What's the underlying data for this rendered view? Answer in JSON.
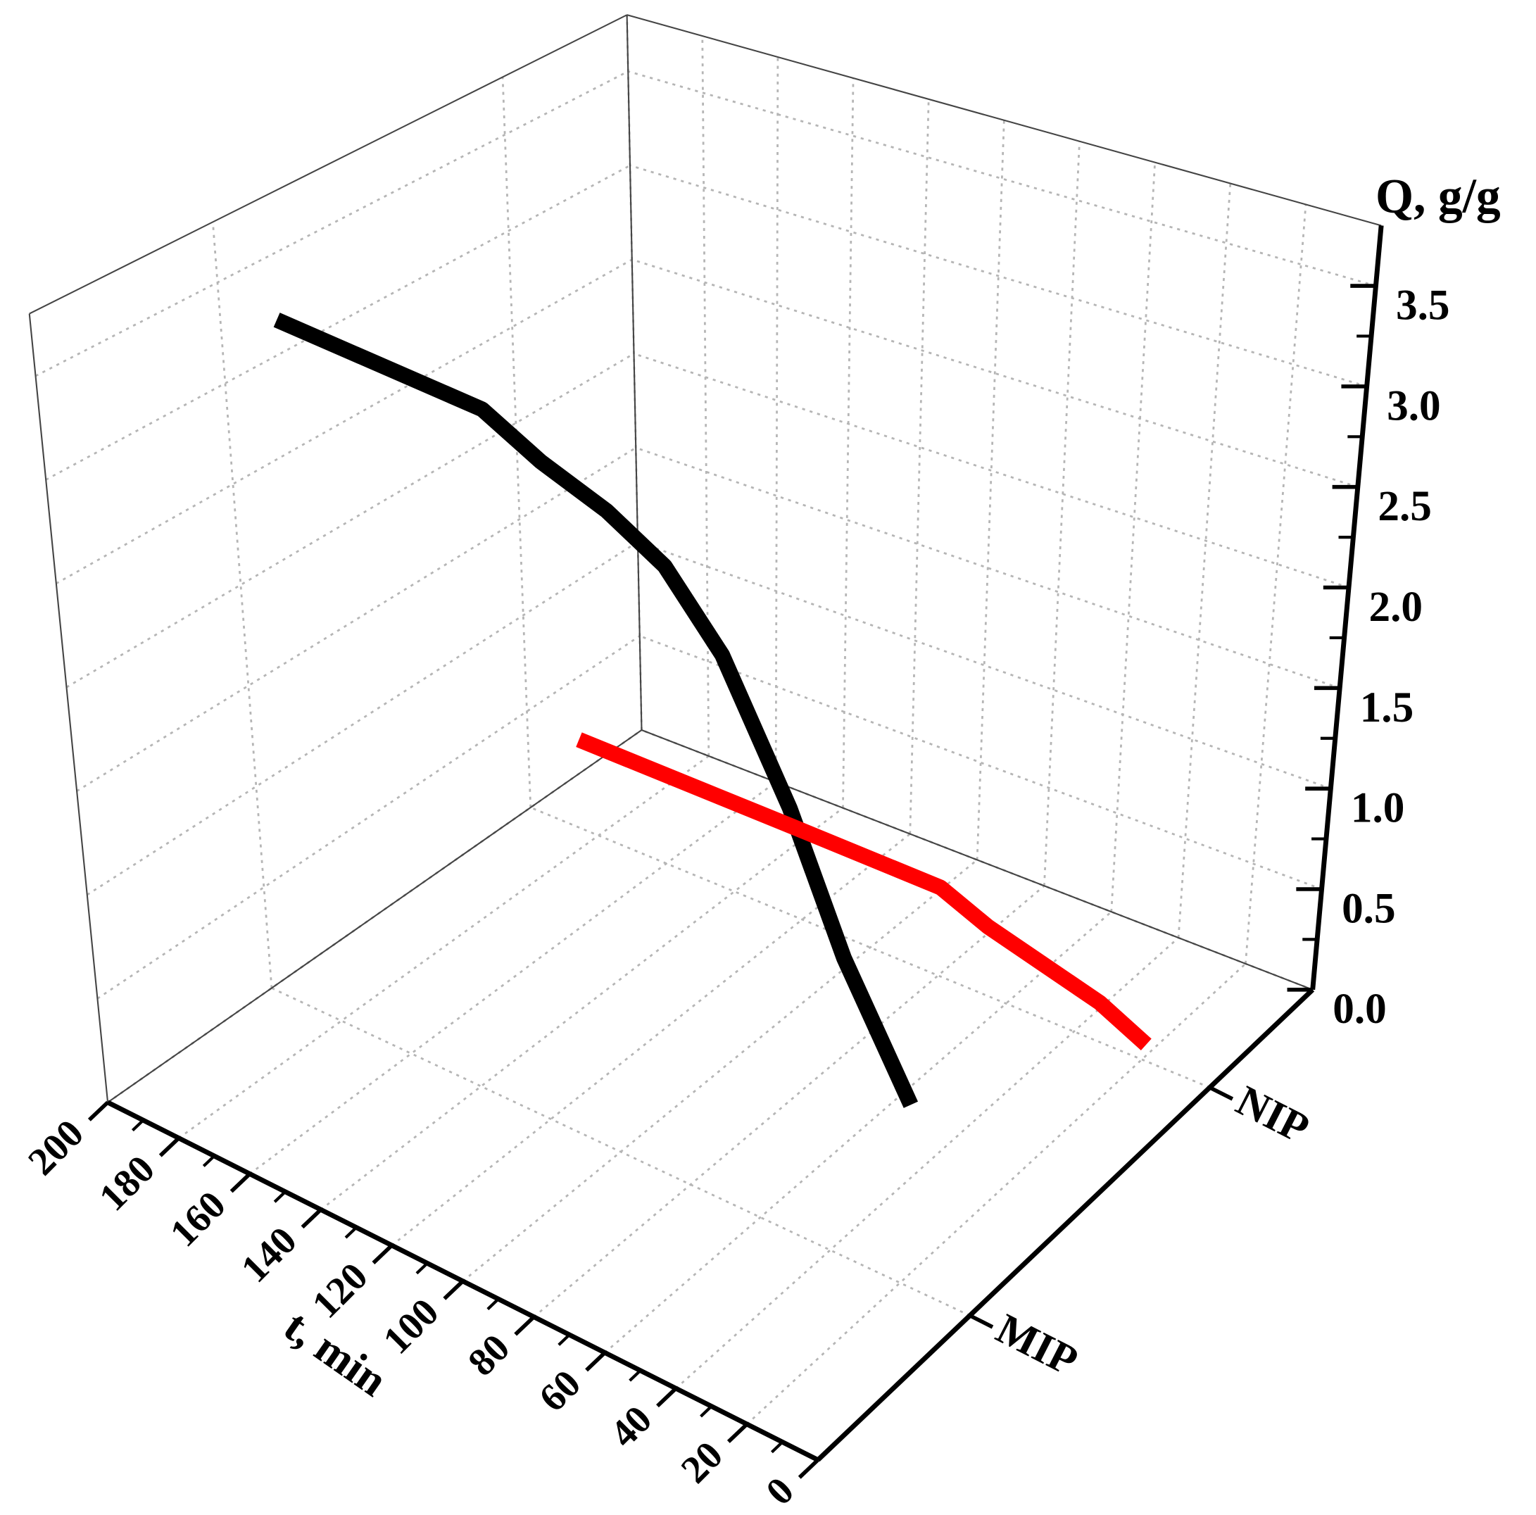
{
  "chart_data": {
    "type": "line3d",
    "xlabel": "t, min",
    "ylabel": "Q, g/g",
    "categories": [
      "MIP",
      "NIP"
    ],
    "series": [
      {
        "color": "#000000",
        "x": [
          18,
          37,
          52,
          70,
          85,
          100,
          117,
          132,
          185
        ],
        "values": [
          0.85,
          1.4,
          2.0,
          2.6,
          2.92,
          3.08,
          3.2,
          3.35,
          3.42
        ]
      },
      {
        "color": "#ff0000",
        "x": [
          19,
          33,
          66,
          80,
          124,
          185
        ],
        "values": [
          0.08,
          0.19,
          0.34,
          0.44,
          0.45,
          0.46
        ]
      }
    ],
    "xlim": [
      0,
      200
    ],
    "xticks": [
      0,
      20,
      40,
      60,
      80,
      100,
      120,
      140,
      160,
      180,
      200
    ],
    "ylim": [
      0,
      3.8
    ],
    "yticks": [
      {
        "value": 0,
        "label": "0.0"
      },
      {
        "value": 0.5,
        "label": "0.5"
      },
      {
        "value": 1,
        "label": "1.0"
      },
      {
        "value": 1.5,
        "label": "1.5"
      },
      {
        "value": 2,
        "label": "2.0"
      },
      {
        "value": 2.5,
        "label": "2.5"
      },
      {
        "value": 3,
        "label": "3.0"
      },
      {
        "value": 3.5,
        "label": "3.5"
      }
    ],
    "grid": true
  }
}
